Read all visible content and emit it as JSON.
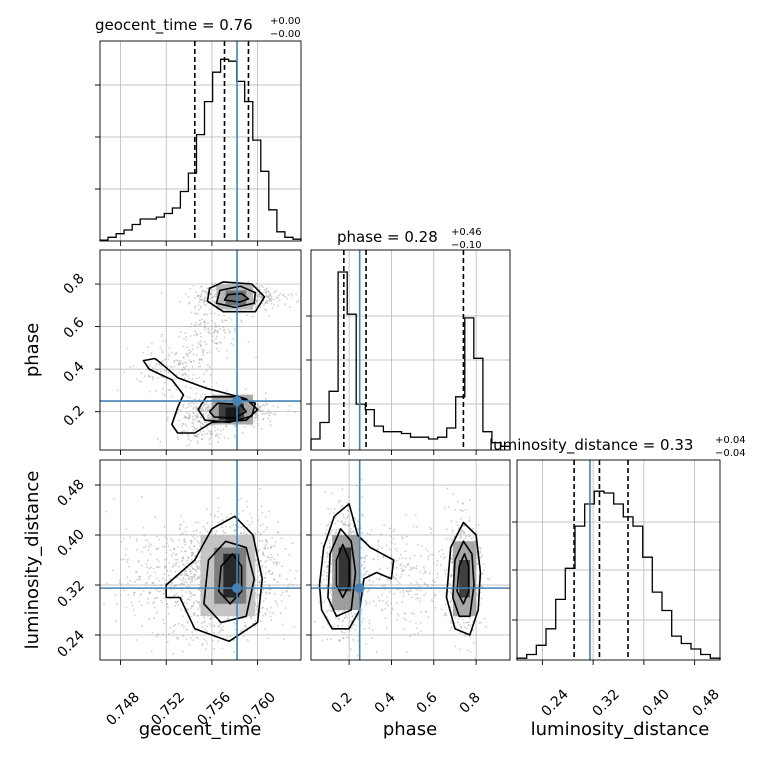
{
  "colors": {
    "truth": "#4682b4",
    "hist": "#000000",
    "grid": "#b0b0b0",
    "points": "#a8a8a8"
  },
  "chart_data": {
    "type": "corner",
    "parameters": [
      "geocent_time",
      "phase",
      "luminosity_distance"
    ],
    "truths": {
      "geocent_time": 0.7582,
      "phase": 0.25,
      "luminosity_distance": 0.315
    },
    "panels": {
      "geocent_time": {
        "title": {
          "prefix": "geocent_time = ",
          "value": "0.76",
          "upper": "+0.00",
          "lower": "−0.00"
        },
        "range": [
          0.7462,
          0.7638
        ],
        "hist_max": 1.0,
        "quantiles": [
          0.7545,
          0.7571,
          0.7592
        ],
        "hist": [
          0.005,
          0.02,
          0.04,
          0.06,
          0.09,
          0.12,
          0.12,
          0.13,
          0.15,
          0.18,
          0.27,
          0.37,
          0.58,
          0.76,
          0.92,
          0.99,
          0.98,
          0.87,
          0.76,
          0.55,
          0.38,
          0.17,
          0.05,
          0.02,
          0.01
        ]
      },
      "phase": {
        "title": {
          "prefix": "phase = ",
          "value": "0.28",
          "upper": "+0.46",
          "lower": "−0.10"
        },
        "range": [
          0.02,
          0.96
        ],
        "hist_max": 1.0,
        "quantiles": [
          0.175,
          0.28,
          0.74
        ],
        "hist": [
          0.06,
          0.15,
          0.32,
          0.97,
          0.74,
          0.25,
          0.22,
          0.13,
          0.1,
          0.1,
          0.09,
          0.07,
          0.07,
          0.06,
          0.07,
          0.12,
          0.29,
          0.72,
          0.5,
          0.1,
          0.04,
          0.02
        ]
      },
      "luminosity_distance": {
        "title": {
          "prefix": "luminosity_distance = ",
          "value": "0.33",
          "upper": "+0.04",
          "lower": "−0.04"
        },
        "range": [
          0.2,
          0.52
        ],
        "hist_max": 1.0,
        "quantiles": [
          0.29,
          0.33,
          0.375
        ],
        "hist": [
          0.01,
          0.03,
          0.08,
          0.17,
          0.33,
          0.5,
          0.73,
          0.85,
          0.92,
          0.91,
          0.85,
          0.78,
          0.73,
          0.56,
          0.37,
          0.27,
          0.13,
          0.09,
          0.06,
          0.03,
          0.01
        ]
      }
    },
    "axes": {
      "geocent_time": {
        "label": "geocent_time",
        "ticks": [
          0.748,
          0.752,
          0.756,
          0.76
        ],
        "tick_labels": [
          "0.748",
          "0.752",
          "0.756",
          "0.760"
        ]
      },
      "phase": {
        "label": "phase",
        "ticks": [
          0.2,
          0.4,
          0.6,
          0.8
        ],
        "tick_labels": [
          "0.2",
          "0.4",
          "0.6",
          "0.8"
        ]
      },
      "luminosity_distance": {
        "label": "luminosity_distance",
        "ticks": [
          0.24,
          0.32,
          0.4,
          0.48
        ],
        "tick_labels": [
          "0.24",
          "0.32",
          "0.40",
          "0.48"
        ]
      }
    },
    "scatter_clusters": {
      "phase_vs_geocent_time": [
        {
          "cx": 0.7582,
          "cy": 0.74,
          "sx": 0.0019,
          "sy": 0.028,
          "n": 500
        },
        {
          "cx": 0.7572,
          "cy": 0.2,
          "sx": 0.0019,
          "sy": 0.034,
          "n": 650
        },
        {
          "cx": 0.7525,
          "cy": 0.42,
          "sx": 0.0018,
          "sy": 0.06,
          "n": 160
        },
        {
          "cx": 0.756,
          "cy": 0.58,
          "sx": 0.0015,
          "sy": 0.06,
          "n": 130
        },
        {
          "cx": 0.7548,
          "cy": 0.1,
          "sx": 0.0012,
          "sy": 0.03,
          "n": 80
        }
      ],
      "luminosity_distance_vs_geocent_time": [
        {
          "cx": 0.7574,
          "cy": 0.335,
          "sx": 0.0022,
          "sy": 0.042,
          "n": 1400
        },
        {
          "cx": 0.752,
          "cy": 0.325,
          "sx": 0.0022,
          "sy": 0.05,
          "n": 300
        }
      ],
      "luminosity_distance_vs_phase": [
        {
          "cx": 0.18,
          "cy": 0.335,
          "sx": 0.05,
          "sy": 0.05,
          "n": 800
        },
        {
          "cx": 0.74,
          "cy": 0.33,
          "sx": 0.045,
          "sy": 0.05,
          "n": 500
        },
        {
          "cx": 0.45,
          "cy": 0.33,
          "sx": 0.12,
          "sy": 0.045,
          "n": 250
        }
      ]
    },
    "density_cells": {
      "phase_vs_geocent_time": [
        {
          "x": [
            0.7566,
            0.7588
          ],
          "y": [
            0.16,
            0.24
          ],
          "level": 0.85
        },
        {
          "x": [
            0.7572,
            0.7584
          ],
          "y": [
            0.16,
            0.22
          ],
          "level": 1.0
        },
        {
          "x": [
            0.756,
            0.7596
          ],
          "y": [
            0.14,
            0.28
          ],
          "level": 0.35
        },
        {
          "x": [
            0.7572,
            0.759
          ],
          "y": [
            0.7,
            0.77
          ],
          "level": 0.6
        },
        {
          "x": [
            0.7564,
            0.7596
          ],
          "y": [
            0.68,
            0.8
          ],
          "level": 0.25
        }
      ],
      "luminosity_distance_vs_geocent_time": [
        {
          "x": [
            0.757,
            0.7584
          ],
          "y": [
            0.3,
            0.37
          ],
          "level": 0.95
        },
        {
          "x": [
            0.7562,
            0.759
          ],
          "y": [
            0.29,
            0.38
          ],
          "level": 0.55
        },
        {
          "x": [
            0.755,
            0.7598
          ],
          "y": [
            0.27,
            0.4
          ],
          "level": 0.2
        }
      ],
      "luminosity_distance_vs_phase": [
        {
          "x": [
            0.15,
            0.21
          ],
          "y": [
            0.31,
            0.38
          ],
          "level": 0.9
        },
        {
          "x": [
            0.12,
            0.25
          ],
          "y": [
            0.28,
            0.4
          ],
          "level": 0.4
        },
        {
          "x": [
            0.72,
            0.77
          ],
          "y": [
            0.3,
            0.36
          ],
          "level": 0.85
        },
        {
          "x": [
            0.69,
            0.8
          ],
          "y": [
            0.27,
            0.39
          ],
          "level": 0.35
        }
      ]
    },
    "contours": {
      "phase_vs_geocent_time": [
        [
          [
            0.7545,
            0.1
          ],
          [
            0.756,
            0.15
          ],
          [
            0.759,
            0.16
          ],
          [
            0.76,
            0.21
          ],
          [
            0.759,
            0.26
          ],
          [
            0.757,
            0.29
          ],
          [
            0.7555,
            0.31
          ],
          [
            0.753,
            0.36
          ],
          [
            0.7515,
            0.43
          ],
          [
            0.751,
            0.45
          ],
          [
            0.75,
            0.44
          ],
          [
            0.7505,
            0.4
          ],
          [
            0.7525,
            0.35
          ],
          [
            0.7535,
            0.28
          ],
          [
            0.753,
            0.22
          ],
          [
            0.7525,
            0.14
          ],
          [
            0.753,
            0.1
          ]
        ],
        [
          [
            0.7554,
            0.16
          ],
          [
            0.7575,
            0.15
          ],
          [
            0.7595,
            0.18
          ],
          [
            0.7598,
            0.24
          ],
          [
            0.758,
            0.27
          ],
          [
            0.7555,
            0.27
          ],
          [
            0.7548,
            0.21
          ]
        ],
        [
          [
            0.7562,
            0.175
          ],
          [
            0.758,
            0.17
          ],
          [
            0.759,
            0.2
          ],
          [
            0.7585,
            0.235
          ],
          [
            0.7565,
            0.24
          ],
          [
            0.7558,
            0.2
          ]
        ],
        [
          [
            0.7556,
            0.72
          ],
          [
            0.757,
            0.67
          ],
          [
            0.7598,
            0.67
          ],
          [
            0.7606,
            0.74
          ],
          [
            0.7595,
            0.8
          ],
          [
            0.757,
            0.81
          ],
          [
            0.7558,
            0.78
          ]
        ],
        [
          [
            0.7564,
            0.71
          ],
          [
            0.758,
            0.69
          ],
          [
            0.7597,
            0.71
          ],
          [
            0.7598,
            0.76
          ],
          [
            0.7585,
            0.79
          ],
          [
            0.7567,
            0.77
          ]
        ],
        [
          [
            0.7571,
            0.725
          ],
          [
            0.7584,
            0.715
          ],
          [
            0.7592,
            0.73
          ],
          [
            0.7586,
            0.755
          ],
          [
            0.7574,
            0.75
          ]
        ]
      ],
      "luminosity_distance_vs_geocent_time": [
        [
          [
            0.7532,
            0.3
          ],
          [
            0.7545,
            0.25
          ],
          [
            0.7575,
            0.23
          ],
          [
            0.76,
            0.26
          ],
          [
            0.7604,
            0.33
          ],
          [
            0.7596,
            0.4
          ],
          [
            0.758,
            0.43
          ],
          [
            0.756,
            0.41
          ],
          [
            0.7545,
            0.36
          ],
          [
            0.752,
            0.32
          ],
          [
            0.752,
            0.3
          ]
        ],
        [
          [
            0.7553,
            0.29
          ],
          [
            0.7568,
            0.26
          ],
          [
            0.759,
            0.27
          ],
          [
            0.7597,
            0.33
          ],
          [
            0.759,
            0.38
          ],
          [
            0.7572,
            0.39
          ],
          [
            0.7557,
            0.36
          ]
        ],
        [
          [
            0.7566,
            0.31
          ],
          [
            0.7576,
            0.29
          ],
          [
            0.7586,
            0.31
          ],
          [
            0.7586,
            0.35
          ],
          [
            0.7578,
            0.37
          ],
          [
            0.7568,
            0.35
          ]
        ]
      ],
      "luminosity_distance_vs_phase": [
        [
          [
            0.07,
            0.28
          ],
          [
            0.12,
            0.25
          ],
          [
            0.2,
            0.25
          ],
          [
            0.25,
            0.28
          ],
          [
            0.27,
            0.33
          ],
          [
            0.33,
            0.34
          ],
          [
            0.4,
            0.33
          ],
          [
            0.41,
            0.36
          ],
          [
            0.3,
            0.38
          ],
          [
            0.24,
            0.4
          ],
          [
            0.2,
            0.45
          ],
          [
            0.13,
            0.43
          ],
          [
            0.08,
            0.38
          ],
          [
            0.06,
            0.32
          ]
        ],
        [
          [
            0.1,
            0.3
          ],
          [
            0.14,
            0.27
          ],
          [
            0.21,
            0.28
          ],
          [
            0.23,
            0.34
          ],
          [
            0.21,
            0.39
          ],
          [
            0.16,
            0.41
          ],
          [
            0.11,
            0.37
          ]
        ],
        [
          [
            0.14,
            0.32
          ],
          [
            0.17,
            0.3
          ],
          [
            0.2,
            0.32
          ],
          [
            0.2,
            0.36
          ],
          [
            0.17,
            0.385
          ],
          [
            0.14,
            0.36
          ]
        ],
        [
          [
            0.66,
            0.3
          ],
          [
            0.7,
            0.25
          ],
          [
            0.77,
            0.24
          ],
          [
            0.81,
            0.28
          ],
          [
            0.82,
            0.34
          ],
          [
            0.8,
            0.4
          ],
          [
            0.74,
            0.42
          ],
          [
            0.68,
            0.38
          ]
        ],
        [
          [
            0.69,
            0.3
          ],
          [
            0.72,
            0.27
          ],
          [
            0.77,
            0.27
          ],
          [
            0.79,
            0.32
          ],
          [
            0.78,
            0.37
          ],
          [
            0.74,
            0.39
          ],
          [
            0.7,
            0.36
          ]
        ],
        [
          [
            0.71,
            0.31
          ],
          [
            0.74,
            0.29
          ],
          [
            0.765,
            0.31
          ],
          [
            0.765,
            0.35
          ],
          [
            0.745,
            0.37
          ],
          [
            0.72,
            0.35
          ]
        ]
      ]
    }
  }
}
